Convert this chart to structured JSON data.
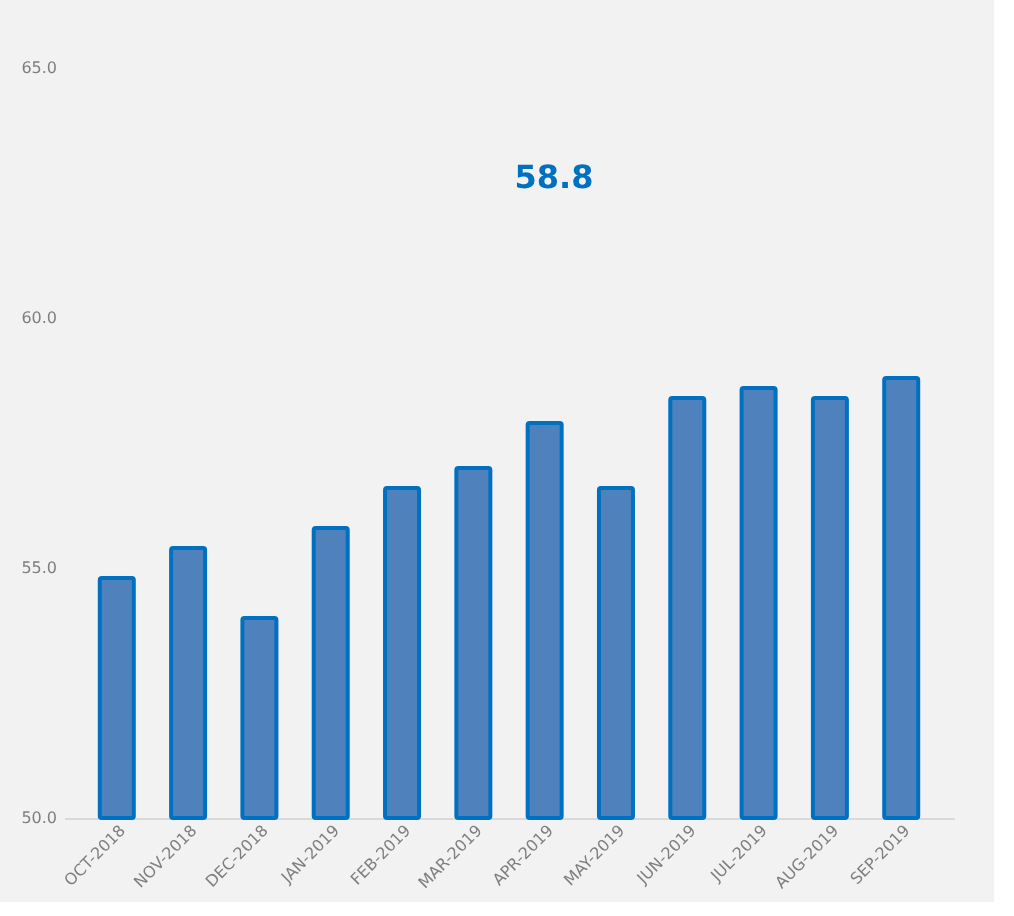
{
  "chart_data": {
    "type": "bar",
    "categories": [
      "OCT-2018",
      "NOV-2018",
      "DEC-2018",
      "JAN-2019",
      "FEB-2019",
      "MAR-2019",
      "APR-2019",
      "MAY-2019",
      "JUN-2019",
      "JUL-2019",
      "AUG-2019",
      "SEP-2019"
    ],
    "values": [
      54.8,
      55.4,
      54.0,
      55.8,
      56.6,
      57.0,
      57.9,
      56.6,
      58.4,
      58.6,
      58.4,
      58.8
    ],
    "color": "#4f81bd",
    "ylim": [
      50,
      65
    ],
    "yticks": [
      {
        "value": 50,
        "label": "50.0"
      },
      {
        "value": 55,
        "label": "55.0"
      },
      {
        "value": 60,
        "label": "60.0"
      },
      {
        "value": 65,
        "label": "65.0"
      }
    ],
    "grid": false,
    "annotations": [
      "58.8"
    ]
  }
}
